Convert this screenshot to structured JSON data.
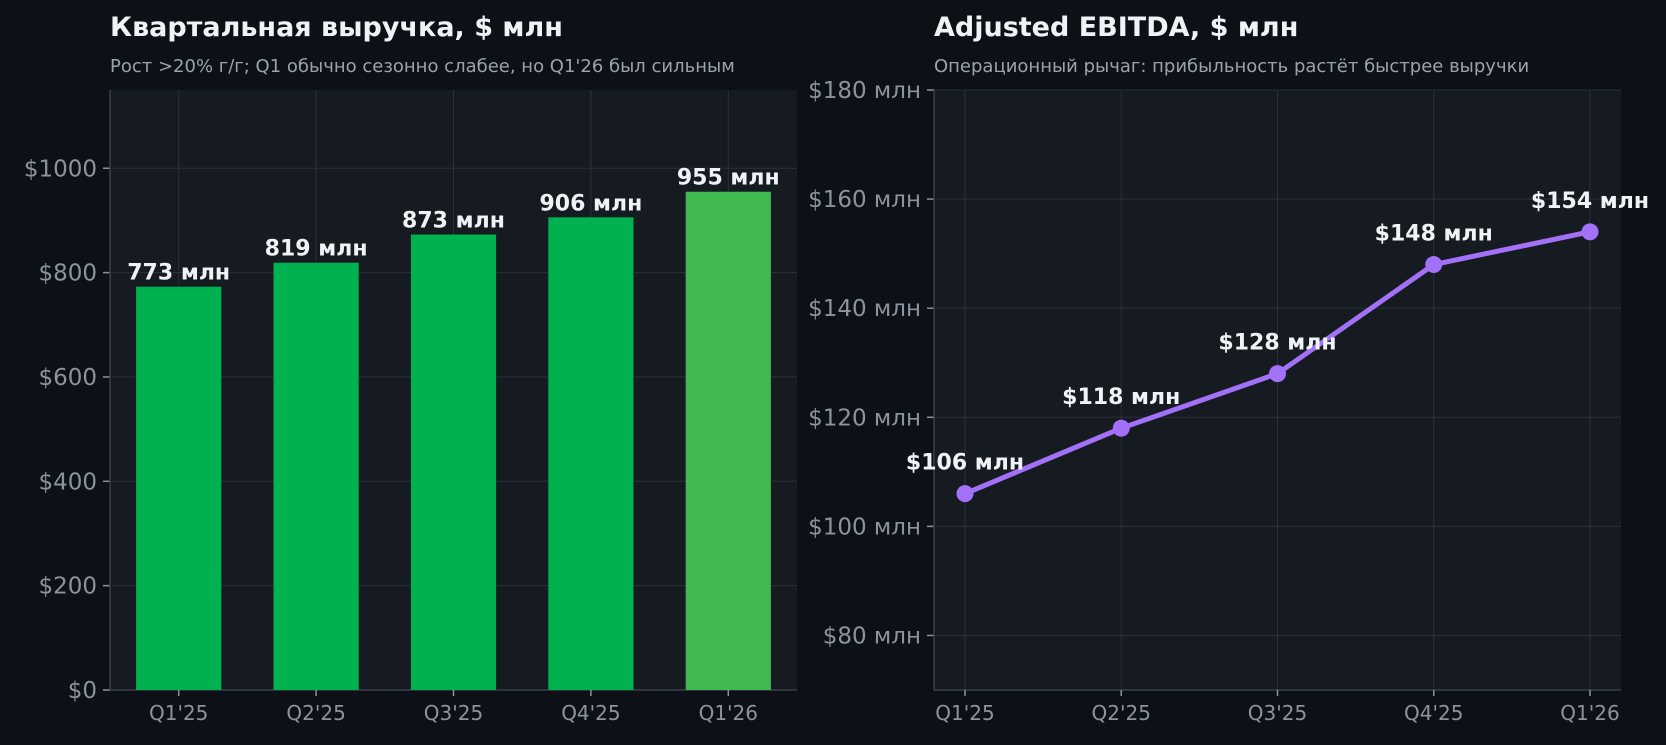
{
  "chart_data": [
    {
      "type": "bar",
      "title": "Квартальная выручка, $ млн",
      "subtitle": "Рост >20% г/г; Q1 обычно сезонно слабее, но Q1'26 был сильным",
      "categories": [
        "Q1'25",
        "Q2'25",
        "Q3'25",
        "Q4'25",
        "Q1'26"
      ],
      "values": [
        773,
        819,
        873,
        906,
        955
      ],
      "value_labels": [
        "773 млн",
        "819 млн",
        "873 млн",
        "906 млн",
        "955 млн"
      ],
      "bar_colors": [
        "#00b14f",
        "#00b14f",
        "#00b14f",
        "#00b14f",
        "#42ba52"
      ],
      "ylim": [
        0,
        1150
      ],
      "yticks": [
        0,
        200,
        400,
        600,
        800,
        1000
      ],
      "ytick_labels": [
        "$0",
        "$200",
        "$400",
        "$600",
        "$800",
        "$1000"
      ],
      "grid": true
    },
    {
      "type": "line",
      "title": "Adjusted EBITDA, $ млн",
      "subtitle": "Операционный рычаг: прибыльность растёт быстрее выручки",
      "categories": [
        "Q1'25",
        "Q2'25",
        "Q3'25",
        "Q4'25",
        "Q1'26"
      ],
      "values": [
        106,
        118,
        128,
        148,
        154
      ],
      "value_labels": [
        "$106 млн",
        "$118 млн",
        "$128 млн",
        "$148 млн",
        "$154 млн"
      ],
      "line_color": "#a371f7",
      "ylim": [
        70,
        180
      ],
      "yticks": [
        80,
        100,
        120,
        140,
        160,
        180
      ],
      "ytick_labels": [
        "$80 млн",
        "$100 млн",
        "$120 млн",
        "$140 млн",
        "$160 млн",
        "$180 млн"
      ],
      "grid": true
    }
  ],
  "colors": {
    "background": "#0d1117",
    "plot_background": "#161b22"
  }
}
